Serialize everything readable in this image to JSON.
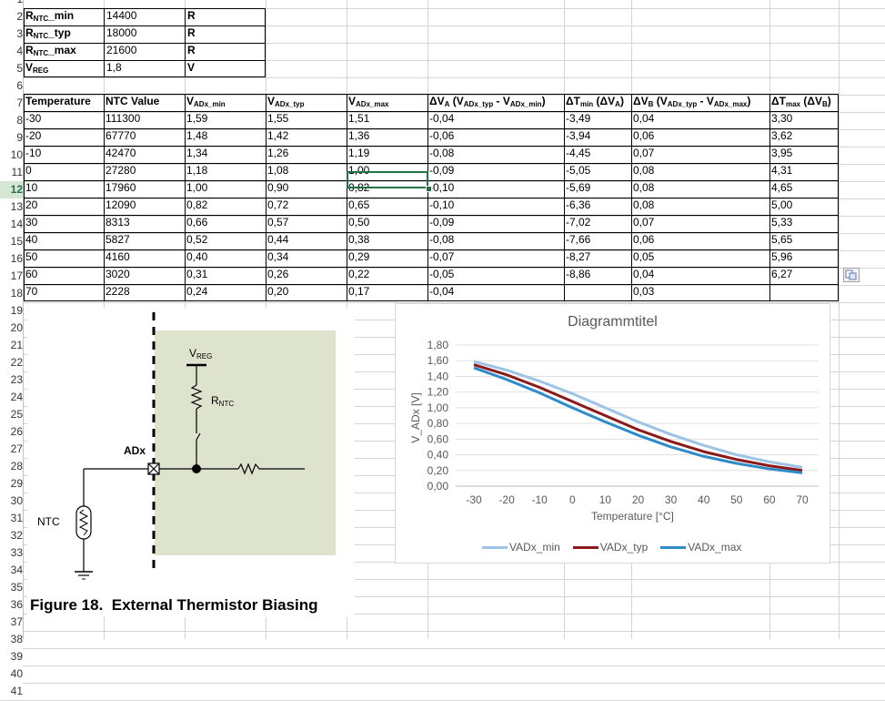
{
  "sheet": {
    "visible_rows": [
      "1",
      "2",
      "3",
      "4",
      "5",
      "6",
      "7",
      "8",
      "9",
      "10",
      "11",
      "12",
      "13",
      "14",
      "15",
      "16",
      "17",
      "18",
      "19",
      "20",
      "21",
      "22",
      "23",
      "24",
      "25",
      "26",
      "27",
      "28",
      "29",
      "30",
      "31",
      "32",
      "33",
      "34",
      "35",
      "36",
      "37",
      "38",
      "39",
      "40",
      "41"
    ],
    "selected_row": "12",
    "params": [
      {
        "name": "R",
        "sub": "NTC",
        "suffix": "_min",
        "value": "14400",
        "unit": "R"
      },
      {
        "name": "R",
        "sub": "NTC",
        "suffix": "_typ",
        "value": "18000",
        "unit": "R"
      },
      {
        "name": "R",
        "sub": "NTC",
        "suffix": "_max",
        "value": "21600",
        "unit": "R"
      },
      {
        "name": "V",
        "sub": "REG",
        "suffix": "",
        "value": "1,8",
        "unit": "V"
      }
    ],
    "headers": {
      "temperature": "Temperature",
      "ntc_value": "NTC Value",
      "vadx_min": {
        "main": "V",
        "sub": "ADx_min"
      },
      "vadx_typ": {
        "main": "V",
        "sub": "ADx_typ"
      },
      "vadx_max": {
        "main": "V",
        "sub": "ADx_max"
      },
      "dva": {
        "pre": "ΔV",
        "sub1": "A",
        "mid": " (V",
        "sub2": "ADx_typ",
        "mid2": " - V",
        "sub3": "ADx_min",
        "post": ")"
      },
      "dtmin": {
        "pre": "ΔT",
        "sub1": "min",
        "post": " (ΔV",
        "sub2": "A",
        "end": ")"
      },
      "dvb": {
        "pre": "ΔV",
        "sub1": "B",
        "mid": " (V",
        "sub2": "ADx_typ",
        "mid2": " - V",
        "sub3": "ADx_max",
        "post": ")"
      },
      "dtmax": {
        "pre": "ΔT",
        "sub1": "max",
        "post": " (ΔV",
        "sub2": "B",
        "end": ")"
      }
    },
    "rows": [
      [
        "-30",
        "111300",
        "1,59",
        "1,55",
        "1,51",
        "-0,04",
        "-3,49",
        "0,04",
        "3,30"
      ],
      [
        "-20",
        "67770",
        "1,48",
        "1,42",
        "1,36",
        "-0,06",
        "-3,94",
        "0,06",
        "3,62"
      ],
      [
        "-10",
        "42470",
        "1,34",
        "1,26",
        "1,19",
        "-0,08",
        "-4,45",
        "0,07",
        "3,95"
      ],
      [
        "0",
        "27280",
        "1,18",
        "1,08",
        "1,00",
        "-0,09",
        "-5,05",
        "0,08",
        "4,31"
      ],
      [
        "10",
        "17960",
        "1,00",
        "0,90",
        "0,82",
        "-0,10",
        "-5,69",
        "0,08",
        "4,65"
      ],
      [
        "20",
        "12090",
        "0,82",
        "0,72",
        "0,65",
        "-0,10",
        "-6,36",
        "0,08",
        "5,00"
      ],
      [
        "30",
        "8313",
        "0,66",
        "0,57",
        "0,50",
        "-0,09",
        "-7,02",
        "0,07",
        "5,33"
      ],
      [
        "40",
        "5827",
        "0,52",
        "0,44",
        "0,38",
        "-0,08",
        "-7,66",
        "0,06",
        "5,65"
      ],
      [
        "50",
        "4160",
        "0,40",
        "0,34",
        "0,29",
        "-0,07",
        "-8,27",
        "0,05",
        "5,96"
      ],
      [
        "60",
        "3020",
        "0,31",
        "0,26",
        "0,22",
        "-0,05",
        "-8,86",
        "0,04",
        "6,27"
      ],
      [
        "70",
        "2228",
        "0,24",
        "0,20",
        "0,17",
        "-0,04",
        "",
        "0,03",
        ""
      ]
    ]
  },
  "figure": {
    "caption": "Figure 18.  External Thermistor Biasing",
    "label_vreg_main": "V",
    "label_vreg_sub": "REG",
    "label_rntc_main": "R",
    "label_rntc_sub": "NTC",
    "label_adx": "ADx",
    "label_ntc": "NTC",
    "shade_color": "#dde3cc"
  },
  "chart_data": {
    "type": "line",
    "title": "Diagrammtitel",
    "xlabel": "Temperature [°C]",
    "ylabel": "V_ADx [V]",
    "x": [
      -30,
      -20,
      -10,
      0,
      10,
      20,
      30,
      40,
      50,
      60,
      70
    ],
    "ylim": [
      0,
      1.8
    ],
    "yticks": [
      "0,00",
      "0,20",
      "0,40",
      "0,60",
      "0,80",
      "1,00",
      "1,20",
      "1,40",
      "1,60",
      "1,80"
    ],
    "xticks": [
      "-30",
      "-20",
      "-10",
      "0",
      "10",
      "20",
      "30",
      "40",
      "50",
      "60",
      "70"
    ],
    "grid": true,
    "legend": "bottom",
    "series": [
      {
        "name": "VADx_min",
        "color": "#9dc3e6",
        "values": [
          1.59,
          1.48,
          1.34,
          1.18,
          1.0,
          0.82,
          0.66,
          0.52,
          0.4,
          0.31,
          0.24
        ]
      },
      {
        "name": "VADx_typ",
        "color": "#8b1a1a",
        "values": [
          1.55,
          1.42,
          1.26,
          1.08,
          0.9,
          0.72,
          0.57,
          0.44,
          0.34,
          0.26,
          0.2
        ]
      },
      {
        "name": "VADx_max",
        "color": "#2e8bc9",
        "values": [
          1.51,
          1.36,
          1.19,
          1.0,
          0.82,
          0.65,
          0.5,
          0.38,
          0.29,
          0.22,
          0.17
        ]
      }
    ]
  }
}
